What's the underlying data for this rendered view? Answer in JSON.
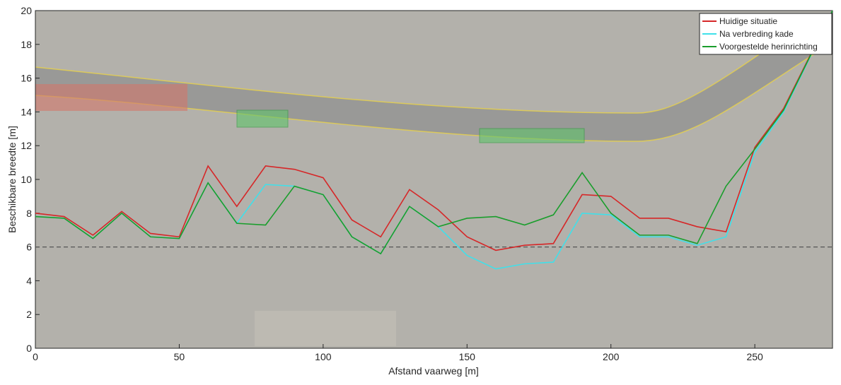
{
  "chart_data": {
    "type": "line",
    "xlabel": "Afstand vaarweg [m]",
    "ylabel": "Beschikbare breedte [m]",
    "x": [
      0,
      10,
      20,
      30,
      40,
      50,
      60,
      70,
      80,
      90,
      100,
      110,
      120,
      130,
      140,
      150,
      160,
      170,
      180,
      190,
      200,
      210,
      220,
      230,
      240,
      250,
      260,
      277
    ],
    "series": [
      {
        "name": "Huidige situatie",
        "color": "#d62728",
        "values": [
          8.0,
          7.8,
          6.7,
          8.1,
          6.8,
          6.6,
          10.8,
          8.4,
          10.8,
          10.6,
          10.1,
          7.6,
          6.6,
          9.4,
          8.2,
          6.6,
          5.8,
          6.1,
          6.2,
          9.1,
          9.0,
          7.7,
          7.7,
          7.2,
          6.9,
          11.9,
          14.2,
          20
        ]
      },
      {
        "name": "Na verbreding kade",
        "color": "#3fe0ea",
        "values": [
          7.8,
          7.7,
          6.5,
          8.0,
          6.6,
          6.5,
          9.8,
          7.4,
          9.7,
          9.6,
          9.1,
          6.6,
          5.6,
          8.4,
          7.2,
          5.5,
          4.7,
          5.0,
          5.1,
          8.0,
          7.9,
          6.6,
          6.6,
          6.1,
          6.6,
          11.6,
          14.0,
          20
        ]
      },
      {
        "name": "Voorgestelde herinrichting",
        "color": "#1a9e2c",
        "values": [
          7.8,
          7.7,
          6.5,
          8.0,
          6.6,
          6.5,
          9.8,
          7.4,
          7.3,
          9.6,
          9.1,
          6.6,
          5.6,
          8.4,
          7.2,
          7.7,
          7.8,
          7.3,
          7.9,
          10.4,
          8.0,
          6.7,
          6.7,
          6.2,
          9.6,
          11.8,
          14.1,
          20
        ]
      }
    ],
    "reference_line": 6,
    "xlim": [
      0,
      277
    ],
    "ylim": [
      0,
      20
    ],
    "xticks": [
      0,
      50,
      100,
      150,
      200,
      250
    ],
    "yticks": [
      0,
      2,
      4,
      6,
      8,
      10,
      12,
      14,
      16,
      18,
      20
    ],
    "legend": "top-right"
  }
}
